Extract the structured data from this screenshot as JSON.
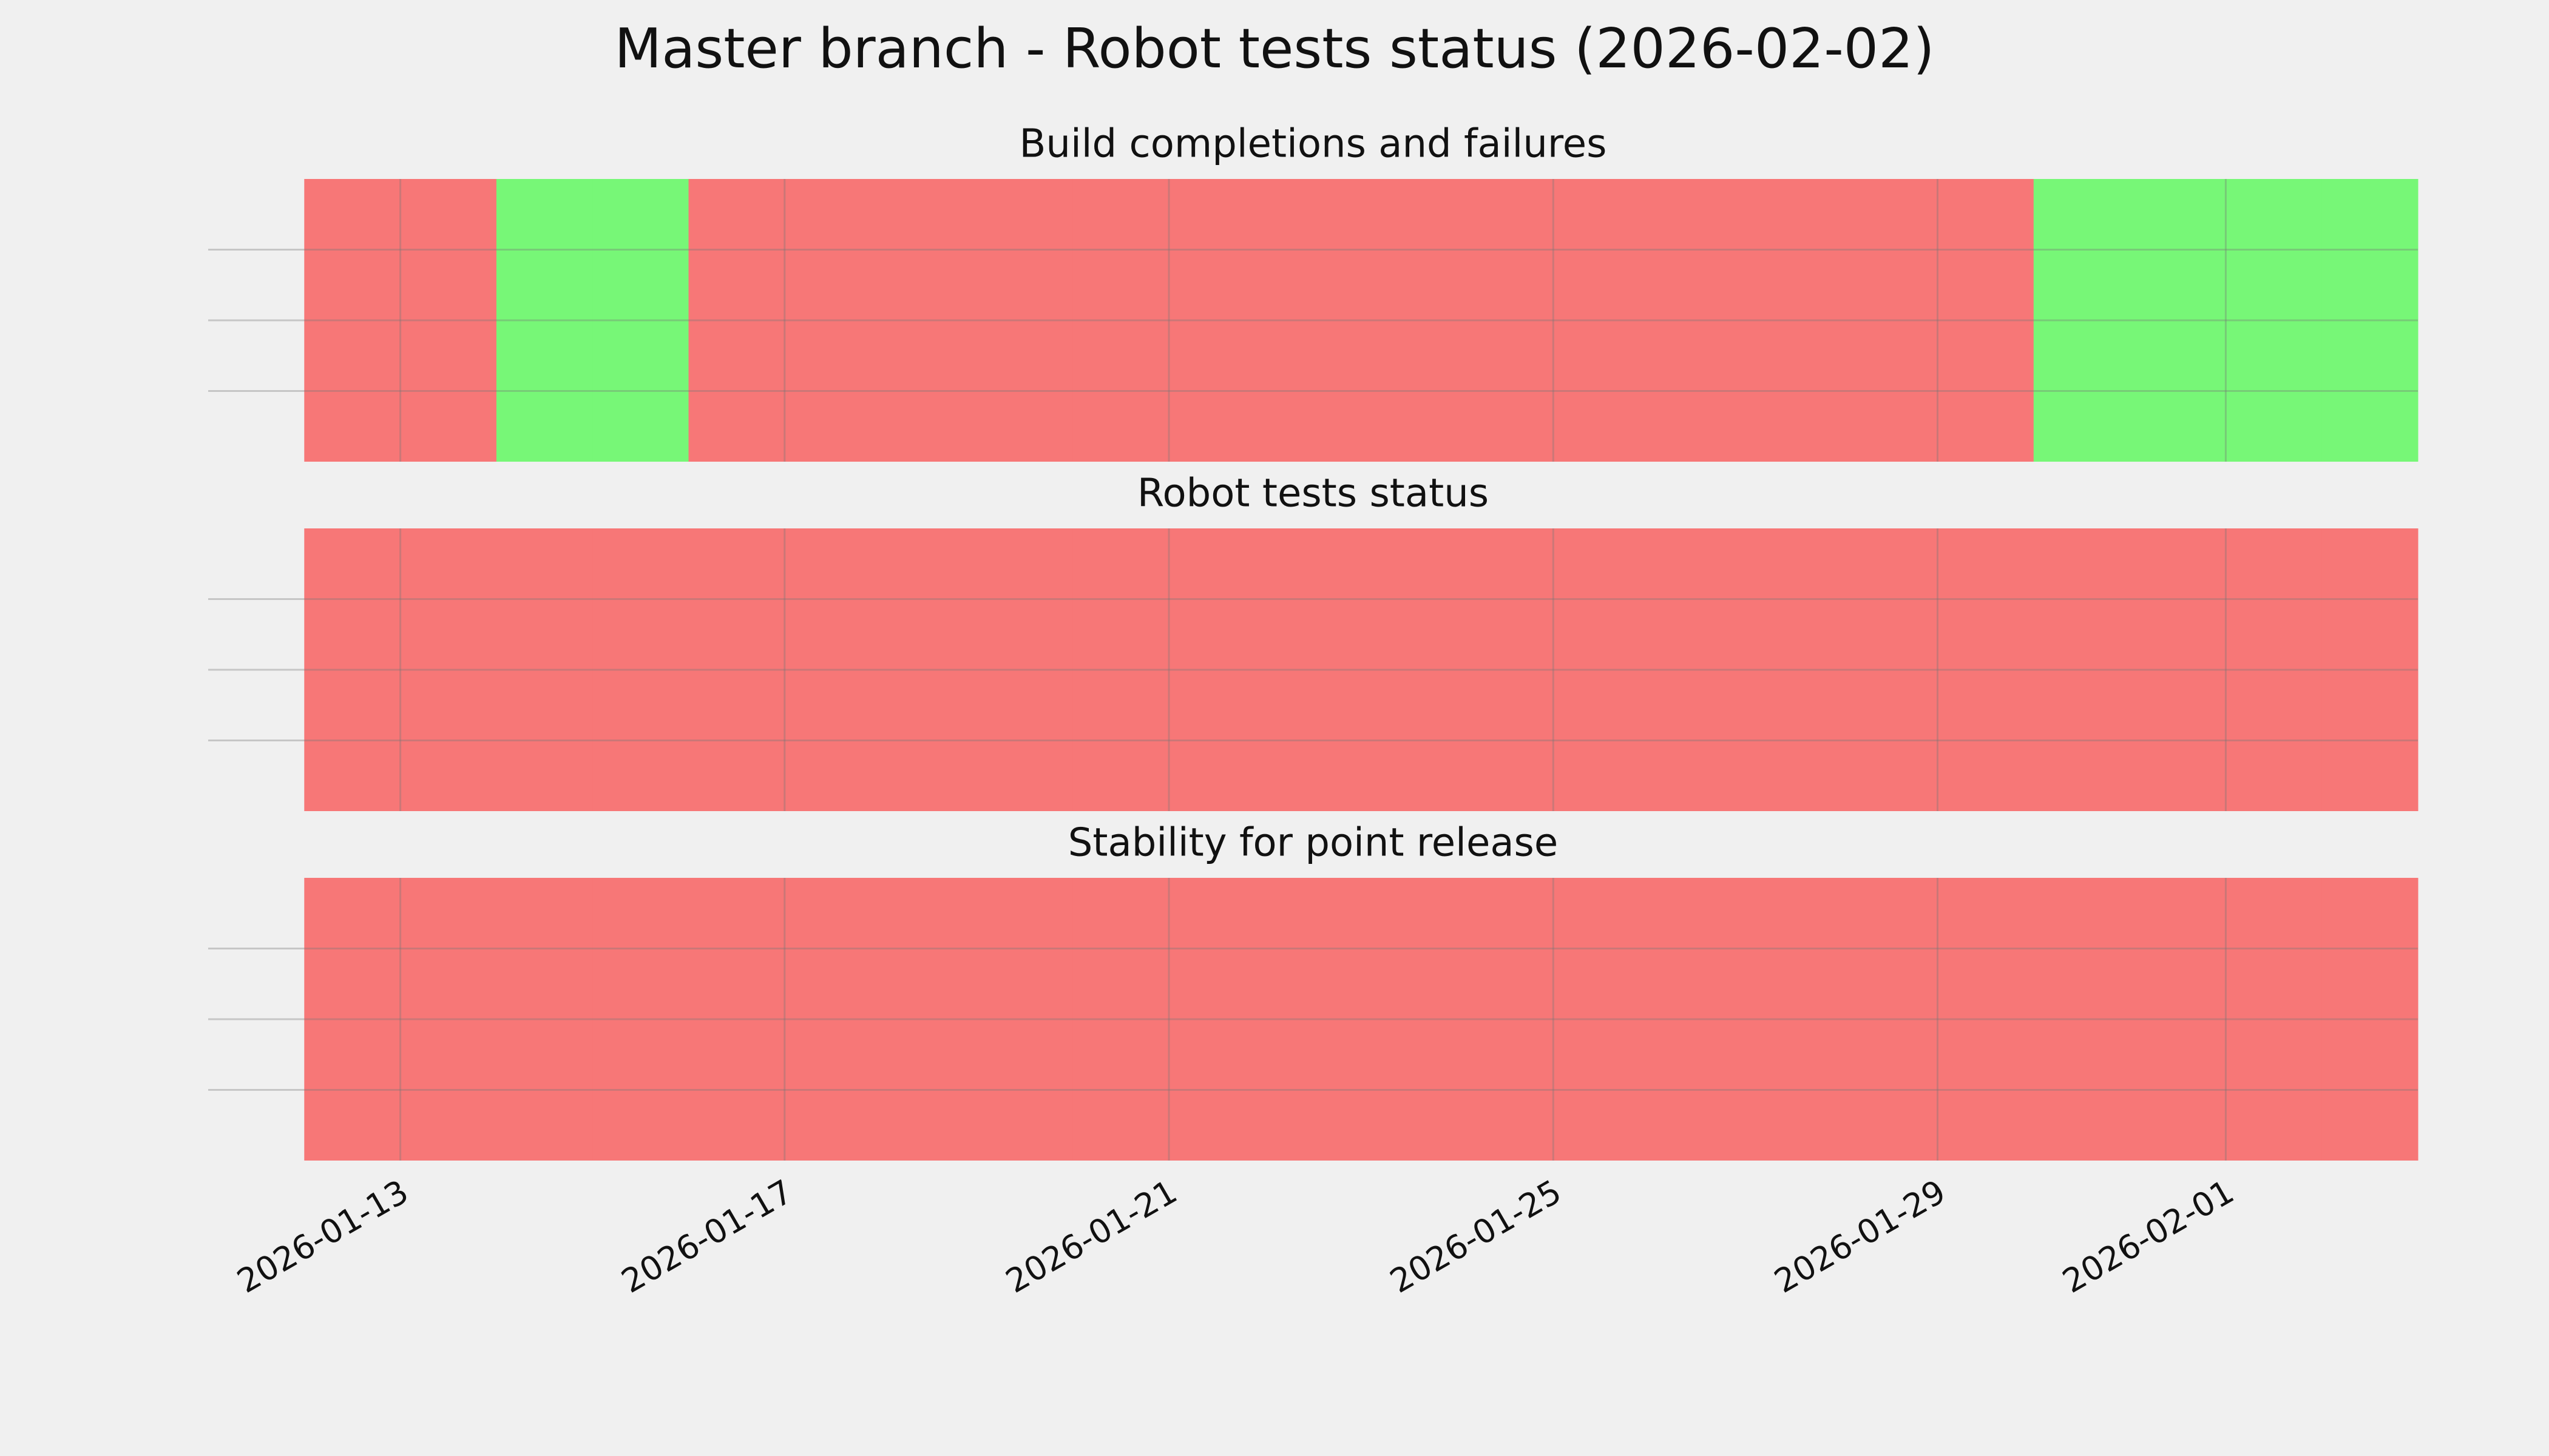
{
  "title": "Master branch - Robot tests status (2026-02-02)",
  "chart_data": [
    {
      "type": "timeline",
      "title": "Build completions and failures",
      "x": [
        "2026-01-12",
        "2026-01-13",
        "2026-01-14",
        "2026-01-15",
        "2026-01-16",
        "2026-01-17",
        "2026-01-18",
        "2026-01-19",
        "2026-01-20",
        "2026-01-21",
        "2026-01-22",
        "2026-01-23",
        "2026-01-24",
        "2026-01-25",
        "2026-01-26",
        "2026-01-27",
        "2026-01-28",
        "2026-01-29",
        "2026-01-30",
        "2026-01-31",
        "2026-02-01",
        "2026-02-02"
      ],
      "values": [
        0,
        0,
        1,
        1,
        0,
        0,
        0,
        0,
        0,
        0,
        0,
        0,
        0,
        0,
        0,
        0,
        0,
        0,
        1,
        1,
        1,
        1
      ],
      "colors": [
        "#f77777",
        "#77f777"
      ],
      "xlim": [
        "2026-01-11",
        "2026-02-03"
      ],
      "xticks": [],
      "ylim": [
        0,
        1
      ],
      "yticks": [
        {
          "value": 0.25,
          "label": null
        },
        {
          "value": 0.5,
          "label": null
        },
        {
          "value": 0.75,
          "label": null
        }
      ],
      "grid": true
    },
    {
      "type": "timeline",
      "title": "Robot tests status",
      "x": [
        "2026-01-12",
        "2026-01-13",
        "2026-01-14",
        "2026-01-15",
        "2026-01-16",
        "2026-01-17",
        "2026-01-18",
        "2026-01-19",
        "2026-01-20",
        "2026-01-21",
        "2026-01-22",
        "2026-01-23",
        "2026-01-24",
        "2026-01-25",
        "2026-01-26",
        "2026-01-27",
        "2026-01-28",
        "2026-01-29",
        "2026-01-30",
        "2026-01-31",
        "2026-02-01",
        "2026-02-02"
      ],
      "values": [
        0,
        0,
        0,
        0,
        0,
        0,
        0,
        0,
        0,
        0,
        0,
        0,
        0,
        0,
        0,
        0,
        0,
        0,
        0,
        0,
        0,
        0
      ],
      "colors": [
        "#f77777",
        "#77f777"
      ],
      "xlim": [
        "2026-01-11",
        "2026-02-03"
      ],
      "xticks": [],
      "ylim": [
        0,
        1
      ],
      "yticks": [
        {
          "value": 0.25,
          "label": null
        },
        {
          "value": 0.5,
          "label": null
        },
        {
          "value": 0.75,
          "label": null
        }
      ],
      "grid": true
    },
    {
      "type": "timeline",
      "title": "Stability for point release",
      "x": [
        "2026-01-12",
        "2026-01-13",
        "2026-01-14",
        "2026-01-15",
        "2026-01-16",
        "2026-01-17",
        "2026-01-18",
        "2026-01-19",
        "2026-01-20",
        "2026-01-21",
        "2026-01-22",
        "2026-01-23",
        "2026-01-24",
        "2026-01-25",
        "2026-01-26",
        "2026-01-27",
        "2026-01-28",
        "2026-01-29",
        "2026-01-30",
        "2026-01-31",
        "2026-02-01",
        "2026-02-02"
      ],
      "values": [
        0,
        0,
        0,
        0,
        0,
        0,
        0,
        0,
        0,
        0,
        0,
        0,
        0,
        0,
        0,
        0,
        0,
        0,
        0,
        0,
        0,
        0
      ],
      "colors": [
        "#f77777",
        "#77f777"
      ],
      "xlim": [
        "2026-01-11",
        "2026-02-03"
      ],
      "xticks": [
        "2026-01-13",
        "2026-01-17",
        "2026-01-21",
        "2026-01-25",
        "2026-01-29",
        "2026-02-01"
      ],
      "ylim": [
        0,
        1
      ],
      "yticks": [
        {
          "value": 0.25,
          "label": null
        },
        {
          "value": 0.5,
          "label": null
        },
        {
          "value": 0.75,
          "label": null
        }
      ],
      "grid": true
    }
  ]
}
